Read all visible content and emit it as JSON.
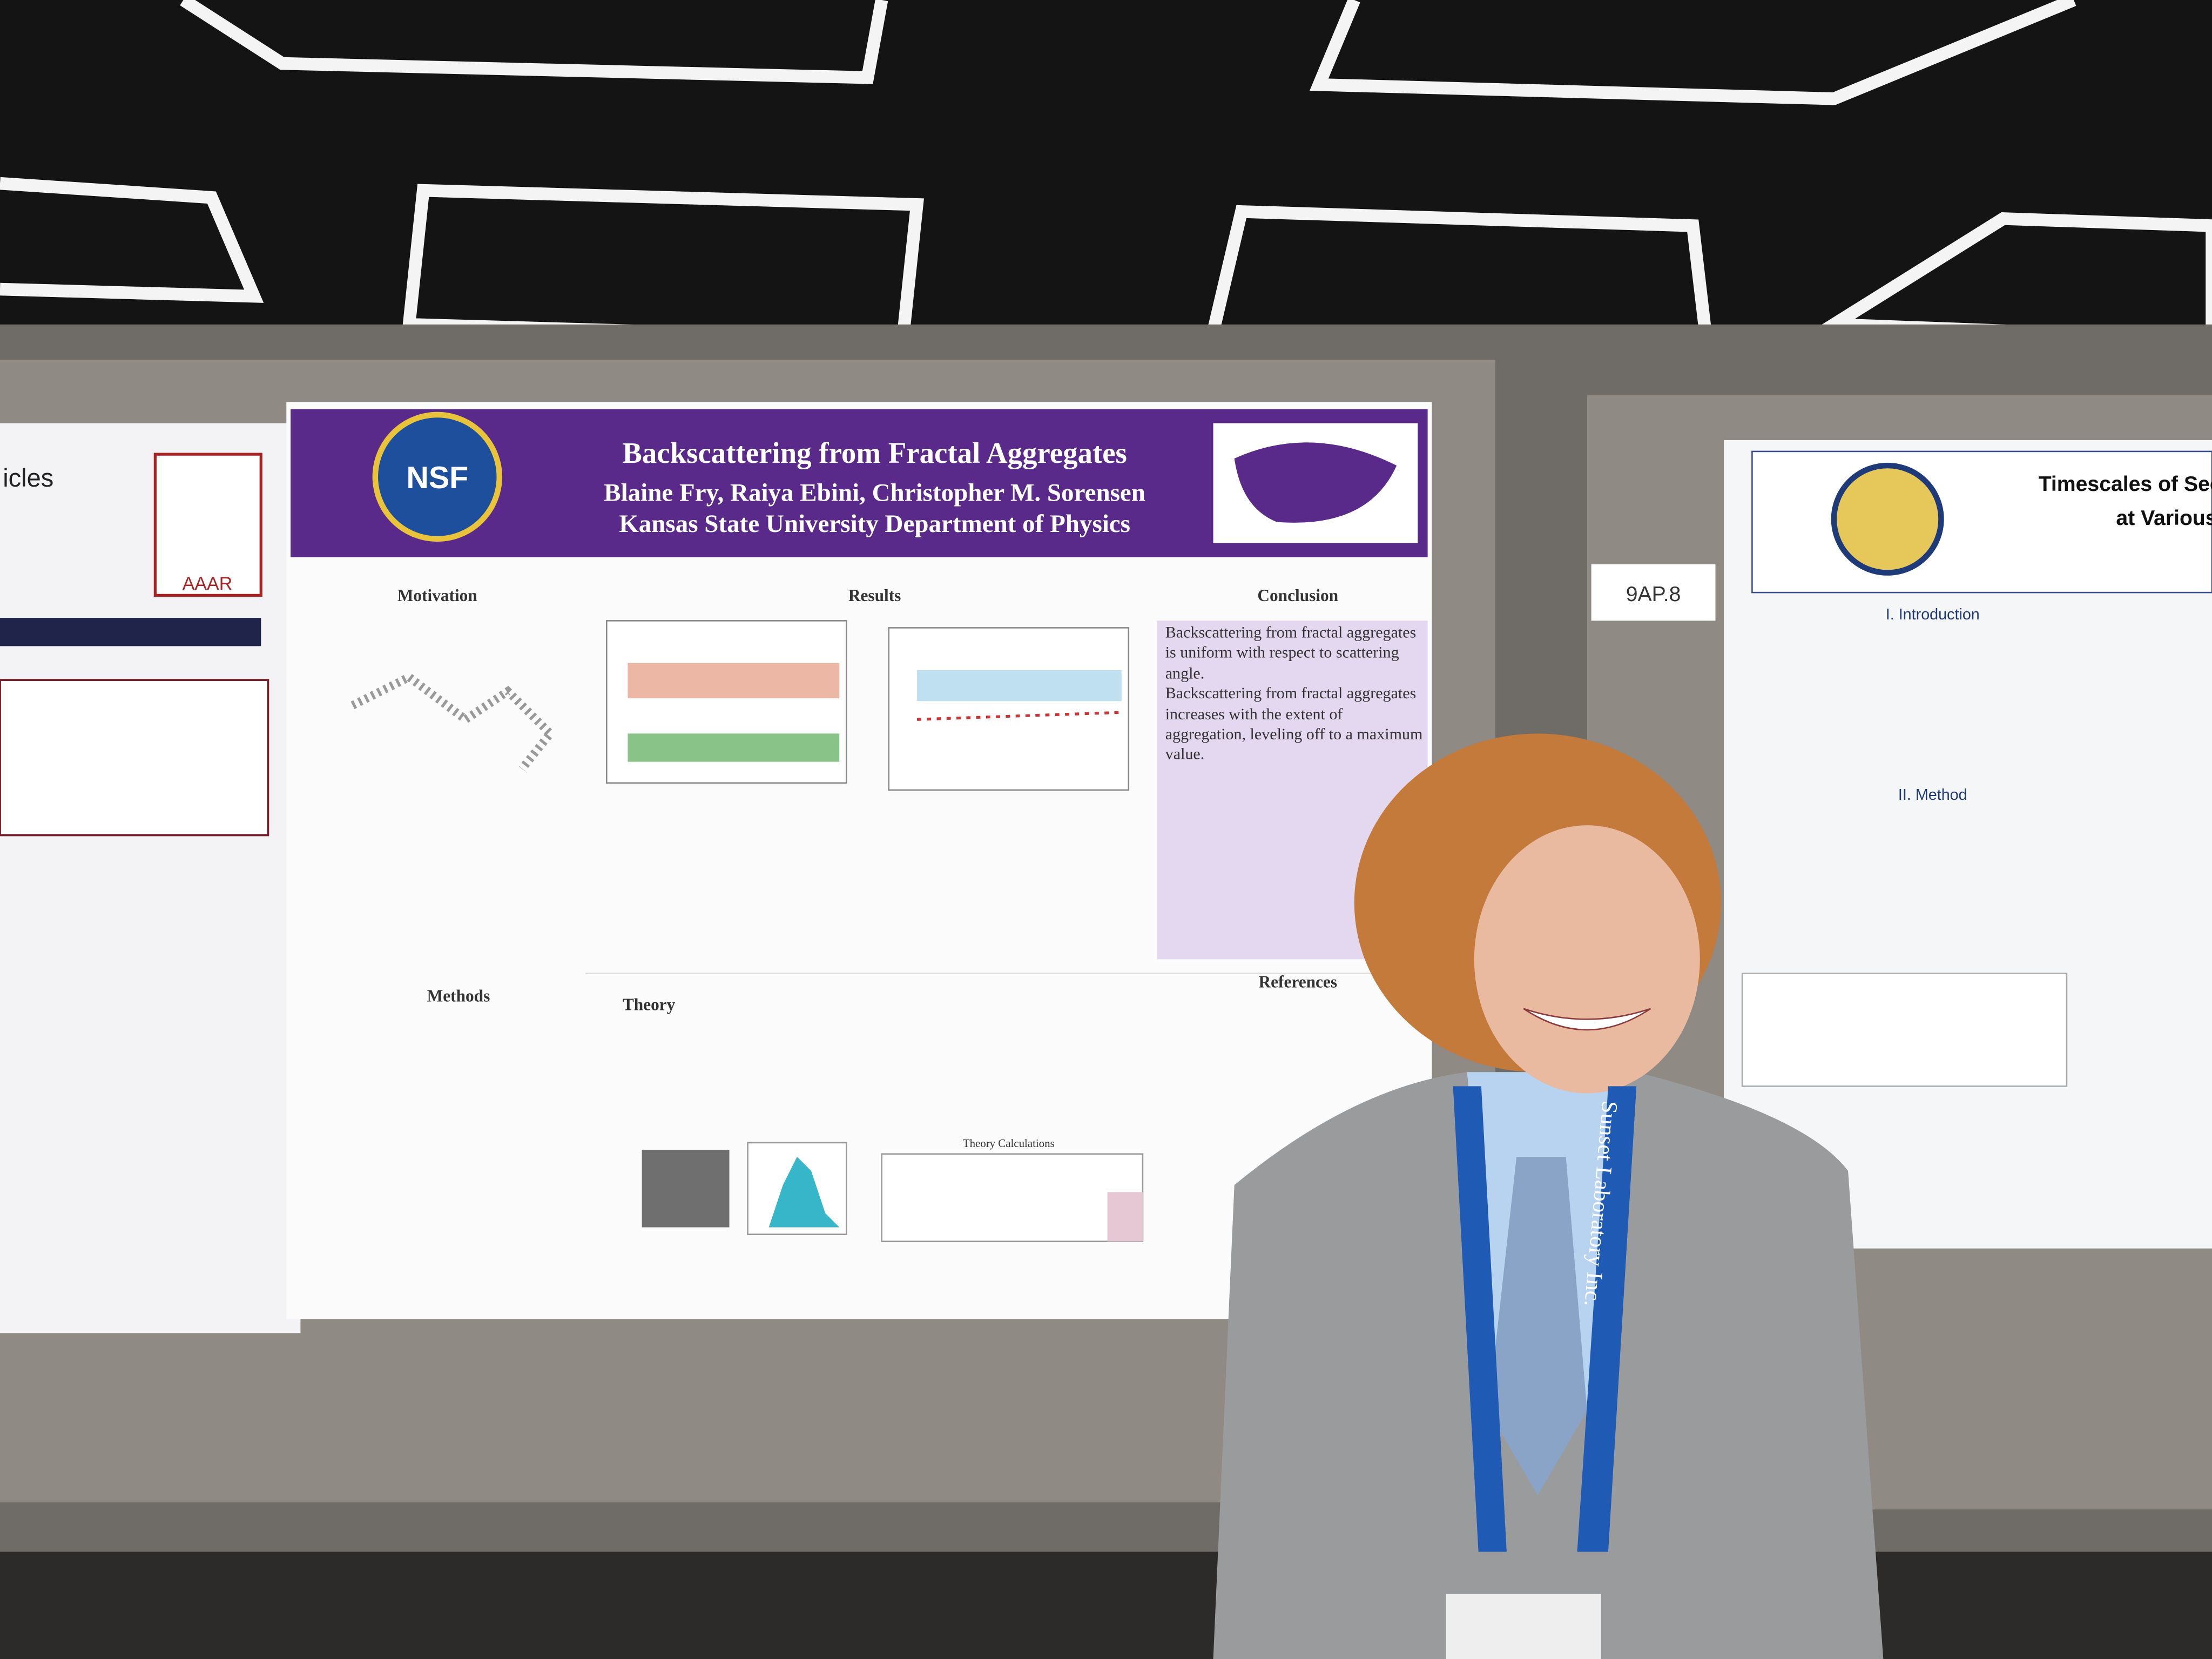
{
  "scene": {
    "main_poster": {
      "title": "Backscattering from Fractal Aggregates",
      "authors": "Blaine Fry, Raiya Ebini, Christopher M. Sorensen",
      "affiliation": "Kansas State University Department of Physics",
      "logo": "NSF",
      "sections": [
        "Motivation",
        "Results",
        "Conclusion",
        "Methods",
        "Theory",
        "References"
      ],
      "conclusion_bullets": [
        "Backscattering from fractal aggregates is uniform with respect to scattering angle.",
        "Backscattering from fractal aggregates increases with the extent of aggregation, leveling off to a maximum value."
      ],
      "table_title": "Theory Calculations"
    },
    "board_tag": "9AP.8",
    "left_poster": {
      "title_fragment": "icles",
      "logo": "AAAR"
    },
    "right_poster": {
      "title_fragment": "Timescales of Sec",
      "subtitle_fragment": "at Various",
      "sections": [
        "I. Introduction",
        "II. Method"
      ]
    },
    "lanyard": "Sunset Laboratory Inc."
  }
}
